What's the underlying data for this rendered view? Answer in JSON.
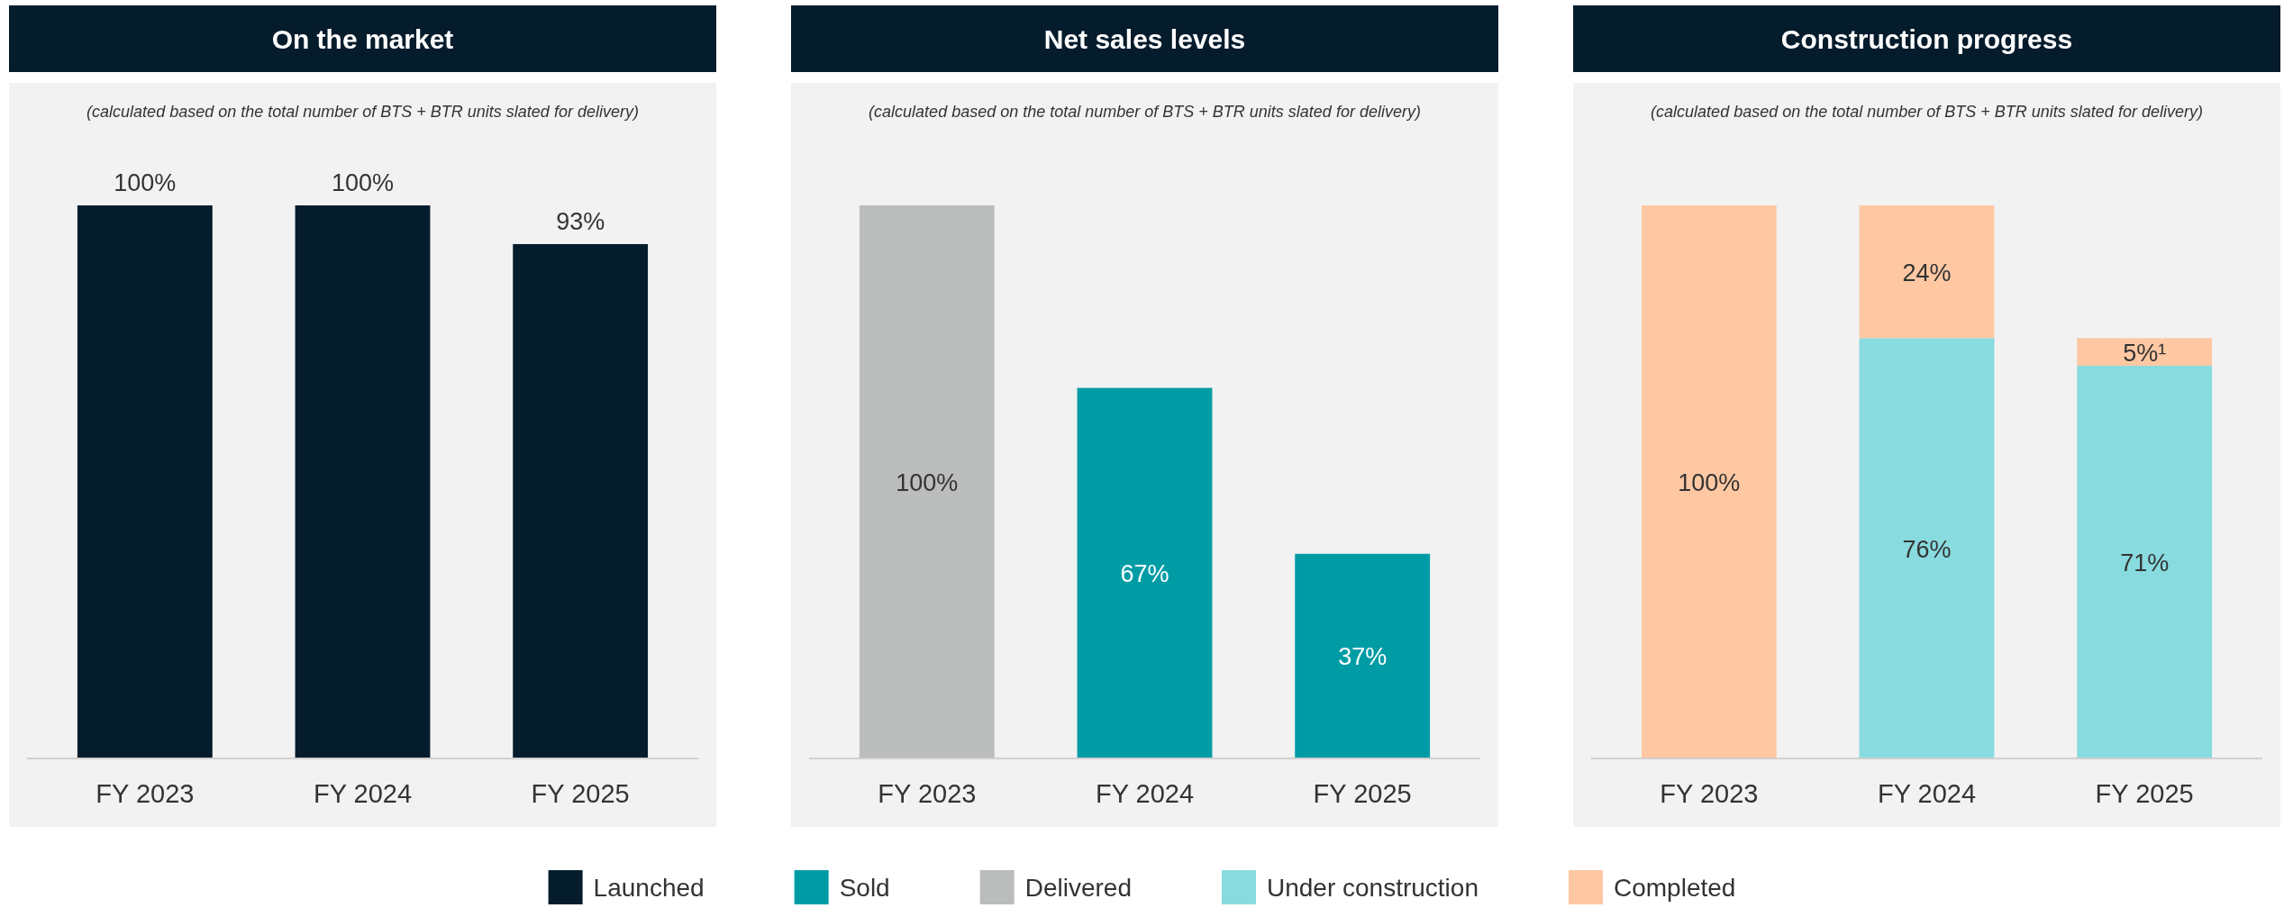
{
  "chart_data": [
    {
      "type": "bar",
      "title": "On the market",
      "subtitle": "(calculated based on the total number of BTS + BTR units slated for delivery)",
      "categories": [
        "FY 2023",
        "FY 2024",
        "FY 2025"
      ],
      "legend": "bottom",
      "series": [
        {
          "name": "Launched",
          "color": "#051c2c",
          "values": [
            100,
            100,
            93
          ],
          "value_labels": [
            "100%",
            "100%",
            "93%"
          ]
        }
      ]
    },
    {
      "type": "bar",
      "title": "Net sales levels",
      "subtitle": "(calculated based on the total number of BTS + BTR units slated for delivery)",
      "categories": [
        "FY 2023",
        "FY 2024",
        "FY 2025"
      ],
      "legend": "bottom",
      "series": [
        {
          "name": "Sold",
          "color": "#009ca6",
          "values": [
            null,
            67,
            37
          ],
          "value_labels": [
            null,
            "67%",
            "37%"
          ]
        },
        {
          "name": "Delivered",
          "color": "#bbbcbc",
          "values": [
            100,
            null,
            null
          ],
          "value_labels": [
            "100%",
            null,
            null
          ]
        }
      ]
    },
    {
      "type": "bar",
      "title": "Construction progress",
      "subtitle": "(calculated based on the total number of BTS + BTR units slated for delivery)",
      "categories": [
        "FY 2023",
        "FY 2024",
        "FY 2025"
      ],
      "legend": "bottom",
      "stacked": true,
      "series": [
        {
          "name": "Under construction",
          "color": "#88dbdf",
          "values": [
            null,
            76,
            71
          ],
          "value_labels": [
            null,
            "76%",
            "71%"
          ]
        },
        {
          "name": "Completed",
          "color": "#ffc8a3",
          "values": [
            100,
            24,
            5
          ],
          "value_labels": [
            "100%",
            "24%",
            "5%¹"
          ]
        }
      ]
    }
  ]
}
